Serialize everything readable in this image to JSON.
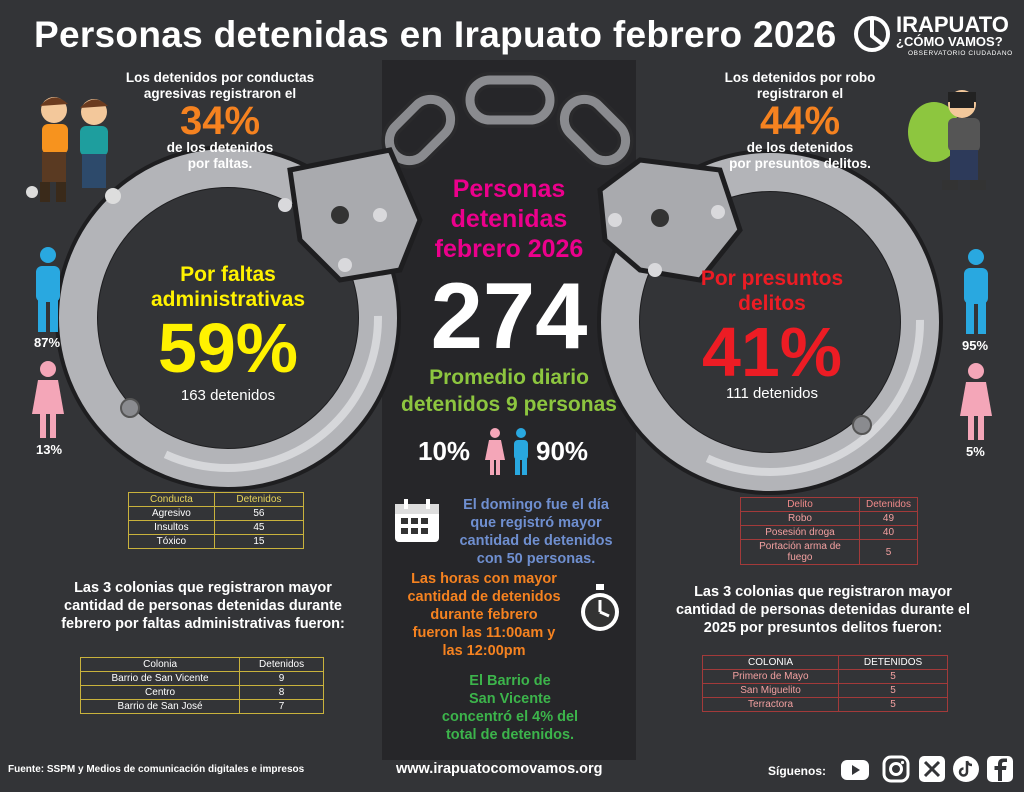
{
  "title": "Personas detenidas en Irapuato febrero 2026",
  "logo": {
    "name": "IRAPUATO",
    "sub": "¿CÓMO VAMOS?",
    "tag": "OBSERVATORIO CIUDADANO"
  },
  "left_top": {
    "line1": "Los detenidos por conductas",
    "line2": "agresivas registraron el",
    "pct": "34%",
    "line3": "de los detenidos",
    "line4": "por faltas."
  },
  "right_top": {
    "line1": "Los detenidos por robo",
    "line2": "registraron el",
    "pct": "44%",
    "line3": "de los detenidos",
    "line4": "por presuntos delitos."
  },
  "left_cuff": {
    "label1": "Por faltas",
    "label2": "administrativas",
    "pct": "59%",
    "count": "163 detenidos",
    "male_pct": "87%",
    "female_pct": "13%"
  },
  "right_cuff": {
    "label1": "Por presuntos",
    "label2": "delitos",
    "pct": "41%",
    "count": "111 detenidos",
    "male_pct": "95%",
    "female_pct": "5%"
  },
  "center": {
    "head1": "Personas",
    "head2": "detenidas",
    "head3": "febrero 2026",
    "total": "274",
    "avg1": "Promedio diario",
    "avg2": "detenidos 9 personas",
    "female_pct": "10%",
    "male_pct": "90%",
    "sunday1": "El domingo fue el día",
    "sunday2": "que registró mayor",
    "sunday3": "cantidad de detenidos",
    "sunday4": "con 50 personas.",
    "hours1": "Las horas con mayor",
    "hours2": "cantidad de detenidos",
    "hours3": "durante febrero",
    "hours4": "fueron las 11:00am y",
    "hours5": "las 12:00pm",
    "barrio1": "El Barrio de",
    "barrio2": "San Vicente",
    "barrio3": "concentró el 4% del",
    "barrio4": "total de detenidos."
  },
  "conducta_table": {
    "headers": [
      "Conducta",
      "Detenidos"
    ],
    "rows": [
      [
        "Agresivo",
        "56"
      ],
      [
        "Insultos",
        "45"
      ],
      [
        "Tóxico",
        "15"
      ]
    ]
  },
  "delito_table": {
    "headers": [
      "Delito",
      "Detenidos"
    ],
    "rows": [
      [
        "Robo",
        "49"
      ],
      [
        "Posesión droga",
        "40"
      ],
      [
        "Portación arma de fuego",
        "5"
      ]
    ]
  },
  "left_colonias": {
    "line1": "Las 3 colonias que registraron mayor",
    "line2": "cantidad de personas detenidas durante",
    "line3": "febrero por faltas administrativas fueron:"
  },
  "right_colonias": {
    "line1": "Las 3 colonias que registraron mayor",
    "line2": "cantidad de personas detenidas durante el",
    "line3": "2025 por presuntos delitos fueron:"
  },
  "colonia_left_table": {
    "headers": [
      "Colonia",
      "Detenidos"
    ],
    "rows": [
      [
        "Barrio de San Vicente",
        "9"
      ],
      [
        "Centro",
        "8"
      ],
      [
        "Barrio de San José",
        "7"
      ]
    ]
  },
  "colonia_right_table": {
    "headers": [
      "COLONIA",
      "DETENIDOS"
    ],
    "rows": [
      [
        "Primero de Mayo",
        "5"
      ],
      [
        "San Miguelito",
        "5"
      ],
      [
        "Terractora",
        "5"
      ]
    ]
  },
  "footer": {
    "source": "Fuente: SSPM y Medios de comunicación digitales e impresos",
    "url": "www.irapuatocomovamos.org",
    "follow": "Síguenos:"
  },
  "colors": {
    "orange": "#f58220",
    "yellow": "#fff200",
    "magenta": "#ec008c",
    "green": "#8dc63f",
    "red": "#ed1c24",
    "male": "#29a8e0",
    "female": "#f4a6b8"
  }
}
